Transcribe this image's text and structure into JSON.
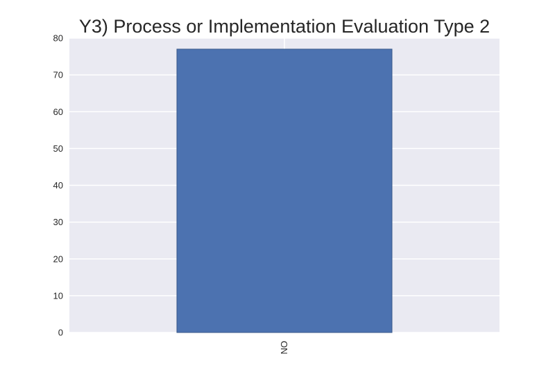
{
  "chart_data": {
    "type": "bar",
    "title": "Y3) Process or Implementation Evaluation Type 2",
    "xlabel": "",
    "ylabel": "",
    "categories": [
      "NO"
    ],
    "values": [
      77
    ],
    "ylim": [
      0,
      80
    ],
    "yticks": [
      0,
      10,
      20,
      30,
      40,
      50,
      60,
      70,
      80
    ],
    "grid": true,
    "legend": "none",
    "colors": {
      "bar": "#4c72b0",
      "bar_edge": "#3b5a8a",
      "plot_background": "#eaeaf2",
      "grid": "#ffffff",
      "text": "#262626"
    }
  }
}
